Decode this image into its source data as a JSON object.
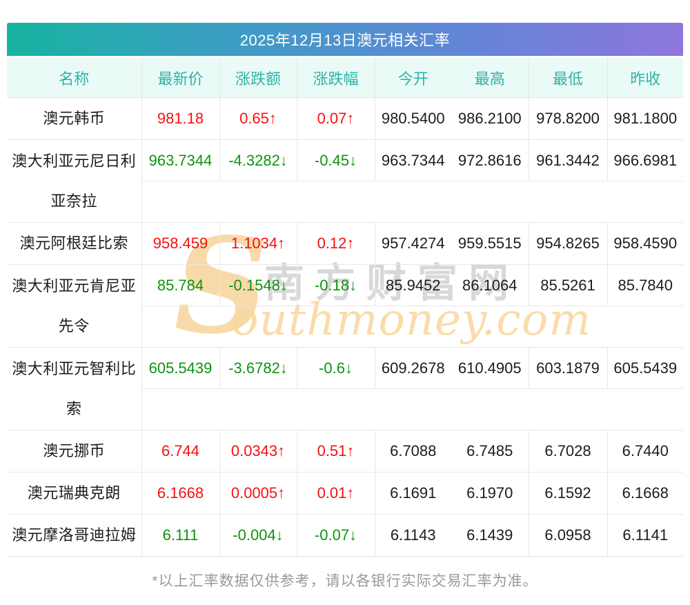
{
  "title": "2025年12月13日澳元相关汇率",
  "columns": [
    "名称",
    "最新价",
    "涨跌额",
    "涨跌幅",
    "今开",
    "最高",
    "最低",
    "昨收"
  ],
  "rows": [
    {
      "name": "澳元韩币",
      "latest": "981.18",
      "change": "0.65↑",
      "pct": "0.07↑",
      "trend": "up",
      "open": "980.5400",
      "high": "986.2100",
      "low": "978.8200",
      "prev": "981.1800",
      "tall": false
    },
    {
      "name": "澳大利亚元尼日利亚奈拉",
      "latest": "963.7344",
      "change": "-4.3282↓",
      "pct": "-0.45↓",
      "trend": "down",
      "open": "963.7344",
      "high": "972.8616",
      "low": "961.3442",
      "prev": "966.6981",
      "tall": true
    },
    {
      "name": "澳元阿根廷比索",
      "latest": "958.459",
      "change": "1.1034↑",
      "pct": "0.12↑",
      "trend": "up",
      "open": "957.4274",
      "high": "959.5515",
      "low": "954.8265",
      "prev": "958.4590",
      "tall": false
    },
    {
      "name": "澳大利亚元肯尼亚先令",
      "latest": "85.784",
      "change": "-0.1548↓",
      "pct": "-0.18↓",
      "trend": "down",
      "open": "85.9452",
      "high": "86.1064",
      "low": "85.5261",
      "prev": "85.7840",
      "tall": true
    },
    {
      "name": "澳大利亚元智利比索",
      "latest": "605.5439",
      "change": "-3.6782↓",
      "pct": "-0.6↓",
      "trend": "down",
      "open": "609.2678",
      "high": "610.4905",
      "low": "603.1879",
      "prev": "605.5439",
      "tall": true
    },
    {
      "name": "澳元挪币",
      "latest": "6.744",
      "change": "0.0343↑",
      "pct": "0.51↑",
      "trend": "up",
      "open": "6.7088",
      "high": "6.7485",
      "low": "6.7028",
      "prev": "6.7440",
      "tall": false
    },
    {
      "name": "澳元瑞典克朗",
      "latest": "6.1668",
      "change": "0.0005↑",
      "pct": "0.01↑",
      "trend": "up",
      "open": "6.1691",
      "high": "6.1970",
      "low": "6.1592",
      "prev": "6.1668",
      "tall": false
    },
    {
      "name": "澳元摩洛哥迪拉姆",
      "latest": "6.111",
      "change": "-0.004↓",
      "pct": "-0.07↓",
      "trend": "down",
      "open": "6.1143",
      "high": "6.1439",
      "low": "6.0958",
      "prev": "6.1141",
      "tall": false
    }
  ],
  "watermark": {
    "big_s": "S",
    "cn": "南方财富网",
    "en": "outhmoney.com"
  },
  "footer": "*以上汇率数据仅供参考，请以各银行实际交易汇率为准。",
  "colors": {
    "up": "#f70f0f",
    "down": "#0e930e",
    "header_text": "#2cb3a6",
    "header_bg": "#eafaf7",
    "gradient_left": "#17b4a1",
    "gradient_mid1": "#3f9cc6",
    "gradient_mid2": "#5f87d6",
    "gradient_right": "#8e76dd",
    "border": "#e7e7e7",
    "text": "#1c1c1c"
  }
}
